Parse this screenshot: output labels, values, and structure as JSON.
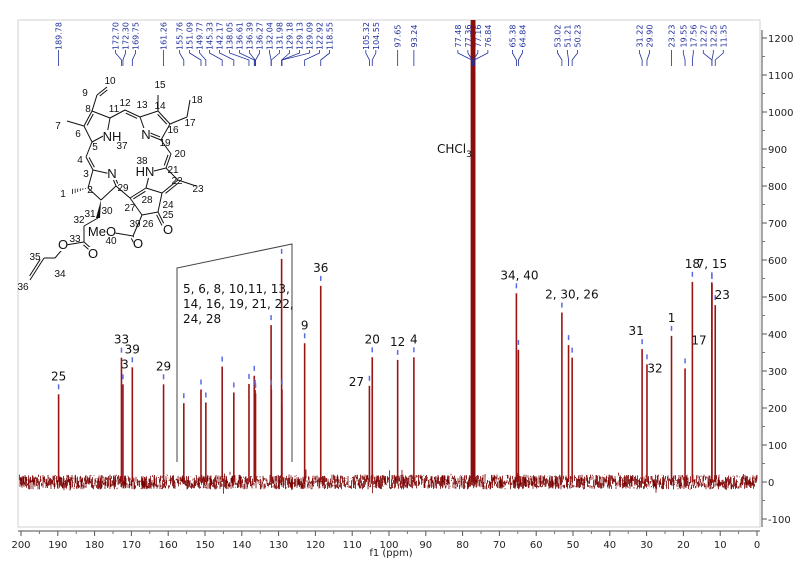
{
  "chart_data": {
    "type": "line",
    "title": "",
    "xlabel": "f1 (ppm)",
    "ylabel": "",
    "xlim": [
      200,
      0
    ],
    "ylim": [
      -100,
      1250
    ],
    "x_ticks": [
      "200",
      "190",
      "180",
      "170",
      "160",
      "150",
      "140",
      "130",
      "120",
      "110",
      "100",
      "90",
      "80",
      "70",
      "60",
      "50",
      "40",
      "30",
      "20",
      "10",
      "0"
    ],
    "y_ticks": [
      "-100",
      "0",
      "100",
      "200",
      "300",
      "400",
      "500",
      "600",
      "700",
      "800",
      "900",
      "1000",
      "1100",
      "1200"
    ],
    "grid": false,
    "peaks": [
      {
        "ppm": 189.78,
        "intensity": 237,
        "label": "189.78"
      },
      {
        "ppm": 172.7,
        "intensity": 336,
        "label": "172.70"
      },
      {
        "ppm": 172.3,
        "intensity": 264,
        "label": "172.30"
      },
      {
        "ppm": 169.75,
        "intensity": 310,
        "label": "169.75"
      },
      {
        "ppm": 161.26,
        "intensity": 264,
        "label": "161.26"
      },
      {
        "ppm": 155.76,
        "intensity": 213,
        "label": "155.76"
      },
      {
        "ppm": 151.09,
        "intensity": 250,
        "label": "151.09"
      },
      {
        "ppm": 149.77,
        "intensity": 215,
        "label": "149.77"
      },
      {
        "ppm": 145.33,
        "intensity": 312,
        "label": "145.33"
      },
      {
        "ppm": 142.17,
        "intensity": 242,
        "label": "142.17"
      },
      {
        "ppm": 138.05,
        "intensity": 265,
        "label": "138.05"
      },
      {
        "ppm": 136.61,
        "intensity": 287,
        "label": "136.61"
      },
      {
        "ppm": 136.39,
        "intensity": 249,
        "label": "136.39"
      },
      {
        "ppm": 136.27,
        "intensity": 240,
        "label": "136.27"
      },
      {
        "ppm": 132.04,
        "intensity": 424,
        "label": "132.04"
      },
      {
        "ppm": 131.98,
        "intensity": 249,
        "label": "131.98"
      },
      {
        "ppm": 129.18,
        "intensity": 603,
        "label": "129.18"
      },
      {
        "ppm": 129.13,
        "intensity": 204,
        "label": "129.13"
      },
      {
        "ppm": 129.09,
        "intensity": 250,
        "label": "129.09"
      },
      {
        "ppm": 122.92,
        "intensity": 375,
        "label": "122.92"
      },
      {
        "ppm": 118.55,
        "intensity": 530,
        "label": "118.55"
      },
      {
        "ppm": 105.32,
        "intensity": 260,
        "label": "105.32"
      },
      {
        "ppm": 104.55,
        "intensity": 337,
        "label": "104.55"
      },
      {
        "ppm": 97.65,
        "intensity": 330,
        "label": "97.65"
      },
      {
        "ppm": 93.24,
        "intensity": 337,
        "label": "93.24"
      },
      {
        "ppm": 77.48,
        "intensity": 1300,
        "label": "77.48"
      },
      {
        "ppm": 77.36,
        "intensity": 1300,
        "label": "77.36"
      },
      {
        "ppm": 77.16,
        "intensity": 1300,
        "label": "77.16"
      },
      {
        "ppm": 76.84,
        "intensity": 1300,
        "label": "76.84"
      },
      {
        "ppm": 65.38,
        "intensity": 510,
        "label": "65.38"
      },
      {
        "ppm": 64.84,
        "intensity": 357,
        "label": "64.84"
      },
      {
        "ppm": 53.02,
        "intensity": 458,
        "label": "53.02"
      },
      {
        "ppm": 51.21,
        "intensity": 370,
        "label": "51.21"
      },
      {
        "ppm": 50.23,
        "intensity": 336,
        "label": "50.23"
      },
      {
        "ppm": 31.22,
        "intensity": 359,
        "label": "31.22"
      },
      {
        "ppm": 29.9,
        "intensity": 318,
        "label": "29.90"
      },
      {
        "ppm": 23.23,
        "intensity": 395,
        "label": "23.23"
      },
      {
        "ppm": 19.55,
        "intensity": 307,
        "label": "19.55"
      },
      {
        "ppm": 17.56,
        "intensity": 541,
        "label": "17.56"
      },
      {
        "ppm": 12.27,
        "intensity": 540,
        "label": "12.27"
      },
      {
        "ppm": 12.25,
        "intensity": 535,
        "label": "12.25"
      },
      {
        "ppm": 11.35,
        "intensity": 478,
        "label": "11.35"
      }
    ],
    "assignments": [
      {
        "text": "25",
        "peak": 189.78
      },
      {
        "text": "33",
        "peak": 172.7
      },
      {
        "text": "3",
        "peak": 172.3
      },
      {
        "text": "39",
        "peak": 169.75
      },
      {
        "text": "29",
        "peak": 161.26
      },
      {
        "text": "9",
        "peak": 122.92
      },
      {
        "text": "36",
        "peak": 118.55
      },
      {
        "text": "27",
        "peak": 105.32
      },
      {
        "text": "20",
        "peak": 104.55
      },
      {
        "text": "12",
        "peak": 97.65
      },
      {
        "text": "4",
        "peak": 93.24
      },
      {
        "text": "34, 40",
        "peak": 65.38
      },
      {
        "text": "2, 30, 26",
        "peak": 53.02
      },
      {
        "text": "31",
        "peak": 31.22
      },
      {
        "text": "32",
        "peak": 29.9
      },
      {
        "text": "1",
        "peak": 23.23
      },
      {
        "text": "17",
        "peak": 19.55
      },
      {
        "text": "18",
        "peak": 17.56
      },
      {
        "text": "7, 15",
        "peak": 12.27
      },
      {
        "text": "23",
        "peak": 11.35
      }
    ],
    "group_assignment": {
      "lines": [
        "5, 6, 8, 10,11, 13,",
        "14, 16, 19, 21, 22,",
        "24, 28"
      ]
    },
    "solvent_label": {
      "main": "CHCl",
      "sub": "3"
    },
    "colors": {
      "spectrum": "#7a0000",
      "peak": "#9b1414",
      "peak_marker": "#5a6ae0",
      "peak_label": "#1f2f9c",
      "axis": "#888888"
    }
  },
  "structure": {
    "labels": [
      "10",
      "9",
      "15",
      "18",
      "12",
      "13",
      "11",
      "8",
      "14",
      "7",
      "6",
      "17",
      "16",
      "NH",
      "37",
      "N",
      "19",
      "5",
      "20",
      "4",
      "38",
      "HN",
      "21",
      "3",
      "N",
      "22",
      "23",
      "1",
      "2",
      "29",
      "27",
      "28",
      "24",
      "30",
      "31",
      "32",
      "25",
      "O",
      "39",
      "26",
      "MeO",
      "40",
      "O",
      "33",
      "O",
      "O",
      "35",
      "34",
      "36"
    ]
  }
}
